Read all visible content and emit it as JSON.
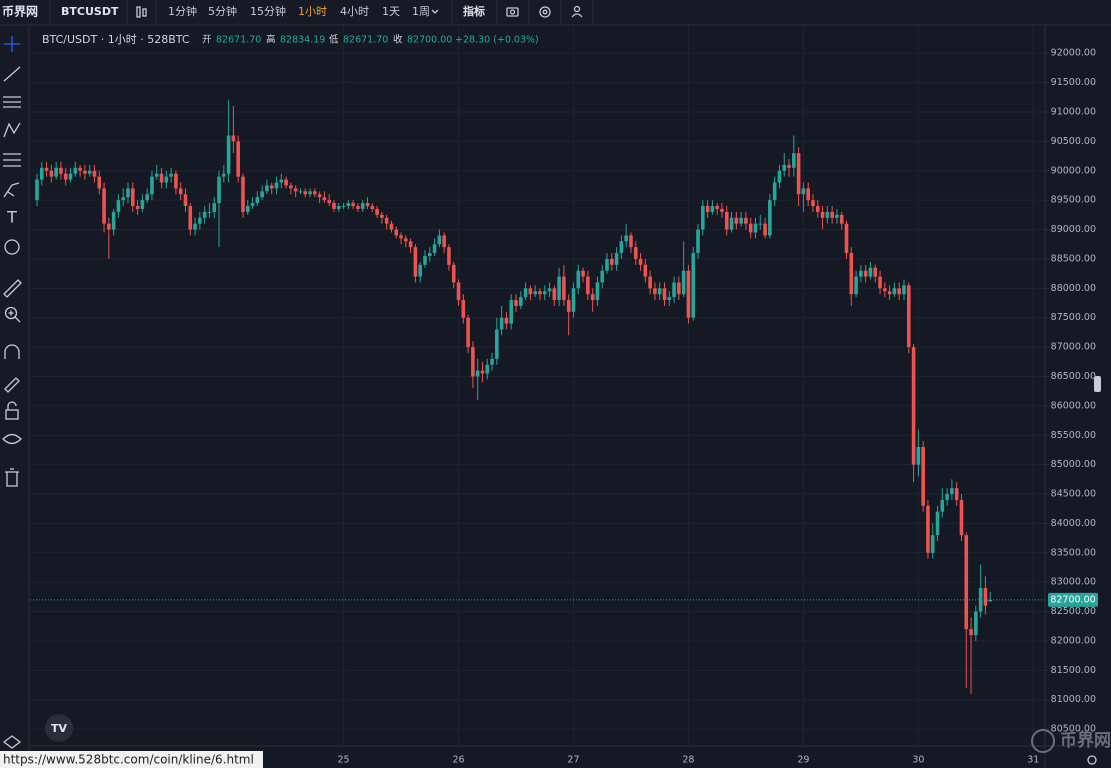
{
  "toolbar": {
    "logo": "币界网",
    "symbol": "BTCUSDT",
    "intervals": [
      "1分钟",
      "5分钟",
      "15分钟",
      "1小时",
      "4小时",
      "1天",
      "1周"
    ],
    "active_interval": 3,
    "indicators": "指标"
  },
  "legend": {
    "title": "BTC/USDT · 1小时 · 528BTC",
    "open_label": "开",
    "open": "82671.70",
    "high_label": "高",
    "high": "82834.19",
    "low_label": "低",
    "low": "82671.70",
    "close_label": "收",
    "close": "82700.00",
    "change": "+28.30 (+0.03%)"
  },
  "last_price_label": "82700.00",
  "status_url": "https://www.528btc.com/coin/kline/6.html",
  "watermark": "币界网",
  "chart_data": {
    "type": "candlestick",
    "up_color": "#26a69a",
    "down_color": "#ef5350",
    "grid": true,
    "ylim": [
      80230,
      92480
    ],
    "yticks": [
      {
        "value": 80500,
        "label": "80500.00"
      },
      {
        "value": 81000,
        "label": "81000.00"
      },
      {
        "value": 81500,
        "label": "81500.00"
      },
      {
        "value": 82000,
        "label": "82000.00"
      },
      {
        "value": 82500,
        "label": "82500.00"
      },
      {
        "value": 83000,
        "label": "83000.00"
      },
      {
        "value": 83500,
        "label": "83500.00"
      },
      {
        "value": 84000,
        "label": "84000.00"
      },
      {
        "value": 84500,
        "label": "84500.00"
      },
      {
        "value": 85000,
        "label": "85000.00"
      },
      {
        "value": 85500,
        "label": "85500.00"
      },
      {
        "value": 86000,
        "label": "86000.00"
      },
      {
        "value": 86500,
        "label": "86500.00"
      },
      {
        "value": 87000,
        "label": "87000.00"
      },
      {
        "value": 87500,
        "label": "87500.00"
      },
      {
        "value": 88000,
        "label": "88000.00"
      },
      {
        "value": 88500,
        "label": "88500.00"
      },
      {
        "value": 89000,
        "label": "89000.00"
      },
      {
        "value": 89500,
        "label": "89500.00"
      },
      {
        "value": 90000,
        "label": "90000.00"
      },
      {
        "value": 90500,
        "label": "90500.00"
      },
      {
        "value": 91000,
        "label": "91000.00"
      },
      {
        "value": 91500,
        "label": "91500.00"
      },
      {
        "value": 92000,
        "label": "92000.00"
      }
    ],
    "x_axis_labels": [
      "25",
      "26",
      "27",
      "28",
      "29",
      "30",
      "31"
    ],
    "open": [
      89500,
      89850,
      90050,
      90000,
      89900,
      90050,
      89950,
      89850,
      89950,
      90050,
      90000,
      89950,
      90000,
      89900,
      89700,
      89100,
      89000,
      89300,
      89500,
      89550,
      89700,
      89400,
      89350,
      89500,
      89600,
      89900,
      89950,
      89800,
      89900,
      89950,
      89700,
      89600,
      89400,
      89000,
      89100,
      89200,
      89300,
      89300,
      89450,
      89900,
      89950,
      90600,
      90500,
      89900,
      89300,
      89400,
      89450,
      89550,
      89650,
      89750,
      89700,
      89800,
      89850,
      89750,
      89700,
      89650,
      89650,
      89600,
      89650,
      89600,
      89550,
      89500,
      89450,
      89350,
      89400,
      89400,
      89450,
      89400,
      89350,
      89450,
      89400,
      89350,
      89250,
      89200,
      89100,
      89000,
      88900,
      88850,
      88800,
      88700,
      88200,
      88400,
      88550,
      88600,
      88750,
      88900,
      88700,
      88400,
      88100,
      87800,
      87500,
      87000,
      86500,
      86600,
      86550,
      86700,
      86800,
      87300,
      87500,
      87400,
      87800,
      87700,
      87850,
      88000,
      87900,
      87950,
      87900,
      87950,
      88000,
      87800,
      88200,
      87800,
      87600,
      88000,
      88300,
      88200,
      87900,
      87800,
      88100,
      88300,
      88500,
      88400,
      88600,
      88800,
      88900,
      88700,
      88500,
      88400,
      88200,
      88000,
      87900,
      88000,
      87800,
      87850,
      88100,
      87900,
      88300,
      87500,
      88600,
      89000,
      89400,
      89300,
      89400,
      89350,
      89300,
      89000,
      89200,
      89100,
      89200,
      89100,
      88950,
      89100,
      89100,
      88900,
      89500,
      89800,
      90000,
      90100,
      90050,
      90300,
      89600,
      89700,
      89500,
      89400,
      89300,
      89200,
      89300,
      89200,
      89250,
      89100,
      88600,
      87900,
      88200,
      88300,
      88200,
      88350,
      88200,
      88000,
      87950,
      87900,
      88000,
      87900,
      88050,
      87000,
      85000,
      85300,
      84300,
      83500,
      83800,
      84200,
      84400,
      84500,
      84600,
      84400,
      83800,
      82200,
      82100,
      82500,
      82900,
      82671.7
    ],
    "high": [
      89950,
      90150,
      90150,
      90100,
      90150,
      90150,
      90050,
      90050,
      90150,
      90100,
      90100,
      90100,
      90100,
      90000,
      89800,
      89200,
      89350,
      89600,
      89700,
      89800,
      89800,
      89500,
      89600,
      89700,
      90000,
      90100,
      90050,
      90000,
      90050,
      90000,
      89800,
      89700,
      89450,
      89200,
      89300,
      89400,
      89450,
      89550,
      90000,
      90100,
      91200,
      91100,
      90600,
      89950,
      89500,
      89550,
      89650,
      89750,
      89850,
      89800,
      89900,
      89950,
      89900,
      89800,
      89750,
      89700,
      89700,
      89700,
      89700,
      89650,
      89650,
      89600,
      89500,
      89450,
      89450,
      89500,
      89500,
      89450,
      89500,
      89550,
      89450,
      89400,
      89300,
      89250,
      89150,
      89050,
      88950,
      88900,
      88850,
      88750,
      88450,
      88650,
      88700,
      88850,
      89000,
      88950,
      88750,
      88450,
      88150,
      87900,
      87550,
      87100,
      86800,
      86750,
      86800,
      86900,
      87500,
      87700,
      87600,
      87900,
      87900,
      87950,
      88100,
      88050,
      88050,
      88000,
      88050,
      88100,
      88050,
      88350,
      88400,
      87900,
      88100,
      88400,
      88350,
      88300,
      88000,
      88200,
      88400,
      88600,
      88600,
      88700,
      88900,
      89100,
      88950,
      88800,
      88600,
      88500,
      88300,
      88100,
      88100,
      88100,
      87950,
      88200,
      88200,
      88800,
      88400,
      88700,
      89100,
      89500,
      89500,
      89500,
      89450,
      89450,
      89400,
      89300,
      89300,
      89300,
      89300,
      89200,
      89200,
      89250,
      89200,
      89600,
      89900,
      90100,
      90300,
      90200,
      90600,
      90400,
      89800,
      89800,
      89600,
      89500,
      89400,
      89400,
      89400,
      89350,
      89300,
      89150,
      88700,
      88300,
      88400,
      88400,
      88450,
      88400,
      88300,
      88100,
      88050,
      88100,
      88100,
      88150,
      88100,
      87050,
      85600,
      85400,
      84400,
      84000,
      84300,
      84600,
      84600,
      84750,
      84700,
      84500,
      83850,
      82400,
      82600,
      83300,
      83100,
      82834.19
    ],
    "low": [
      89400,
      89750,
      89900,
      89800,
      89850,
      89850,
      89750,
      89800,
      89900,
      89900,
      89850,
      89900,
      89800,
      89600,
      88950,
      88500,
      88900,
      89200,
      89400,
      89450,
      89300,
      89250,
      89300,
      89450,
      89500,
      89850,
      89700,
      89700,
      89800,
      89600,
      89500,
      89300,
      88900,
      88900,
      89000,
      89100,
      89200,
      89200,
      88700,
      89800,
      89800,
      90300,
      89800,
      89200,
      89250,
      89350,
      89400,
      89500,
      89600,
      89600,
      89600,
      89700,
      89700,
      89600,
      89550,
      89600,
      89550,
      89550,
      89550,
      89450,
      89450,
      89400,
      89300,
      89300,
      89350,
      89350,
      89350,
      89300,
      89300,
      89350,
      89300,
      89200,
      89100,
      89000,
      88950,
      88850,
      88750,
      88700,
      88600,
      88100,
      88100,
      88350,
      88450,
      88550,
      88700,
      88600,
      88300,
      88000,
      87700,
      87400,
      86900,
      86300,
      86100,
      86400,
      86450,
      86600,
      86700,
      87200,
      87300,
      87300,
      87600,
      87650,
      87800,
      87800,
      87850,
      87800,
      87800,
      87850,
      87700,
      87700,
      87700,
      87200,
      87500,
      87900,
      88100,
      87800,
      87600,
      87700,
      88000,
      88250,
      88300,
      88300,
      88500,
      88700,
      88600,
      88400,
      88300,
      88100,
      87900,
      87800,
      87800,
      87700,
      87700,
      87750,
      87800,
      87850,
      87400,
      87450,
      88500,
      88900,
      89200,
      89250,
      89250,
      89200,
      88900,
      88950,
      89000,
      89050,
      89000,
      88850,
      88850,
      89000,
      88850,
      88850,
      89400,
      89700,
      89900,
      89900,
      89900,
      89400,
      89300,
      89400,
      89300,
      89200,
      89000,
      89100,
      89100,
      89100,
      89000,
      88500,
      87700,
      87850,
      88100,
      88100,
      88150,
      88100,
      87900,
      87850,
      87800,
      87850,
      87800,
      87800,
      86900,
      84700,
      84800,
      84200,
      83400,
      83400,
      83700,
      84100,
      84300,
      84400,
      84300,
      83700,
      81200,
      81100,
      82000,
      82400,
      82450,
      82671.7
    ],
    "close": [
      89850,
      90050,
      90000,
      89900,
      90050,
      89950,
      89850,
      89950,
      90050,
      90000,
      89950,
      90000,
      89900,
      89700,
      89100,
      89000,
      89300,
      89500,
      89550,
      89700,
      89400,
      89350,
      89500,
      89600,
      89900,
      89950,
      89800,
      89900,
      89950,
      89700,
      89600,
      89400,
      89000,
      89100,
      89200,
      89300,
      89300,
      89450,
      89900,
      89950,
      90600,
      90500,
      89900,
      89300,
      89400,
      89450,
      89550,
      89650,
      89750,
      89700,
      89800,
      89850,
      89750,
      89700,
      89650,
      89650,
      89600,
      89650,
      89600,
      89550,
      89500,
      89450,
      89350,
      89400,
      89400,
      89450,
      89400,
      89350,
      89450,
      89400,
      89350,
      89250,
      89200,
      89100,
      89000,
      88900,
      88850,
      88800,
      88700,
      88200,
      88400,
      88550,
      88600,
      88750,
      88900,
      88700,
      88400,
      88100,
      87800,
      87500,
      87000,
      86500,
      86600,
      86550,
      86700,
      86800,
      87300,
      87500,
      87400,
      87800,
      87700,
      87850,
      88000,
      87900,
      87950,
      87900,
      87950,
      88000,
      87800,
      88200,
      87800,
      87600,
      88000,
      88300,
      88200,
      87900,
      87800,
      88100,
      88300,
      88500,
      88400,
      88600,
      88800,
      88900,
      88700,
      88500,
      88400,
      88200,
      88000,
      87900,
      88000,
      87800,
      87850,
      88100,
      87900,
      88300,
      87500,
      88600,
      89000,
      89400,
      89300,
      89400,
      89350,
      89300,
      89000,
      89200,
      89100,
      89200,
      89100,
      88950,
      89100,
      89100,
      88900,
      89500,
      89800,
      90000,
      90100,
      90050,
      90300,
      89600,
      89700,
      89500,
      89400,
      89300,
      89200,
      89300,
      89200,
      89250,
      89100,
      88600,
      87900,
      88200,
      88300,
      88200,
      88350,
      88200,
      88000,
      87950,
      87900,
      88000,
      87900,
      88050,
      87000,
      85000,
      85300,
      84300,
      83500,
      83800,
      84200,
      84400,
      84500,
      84600,
      84400,
      83800,
      82200,
      82100,
      82500,
      82900,
      82600,
      82700
    ]
  }
}
